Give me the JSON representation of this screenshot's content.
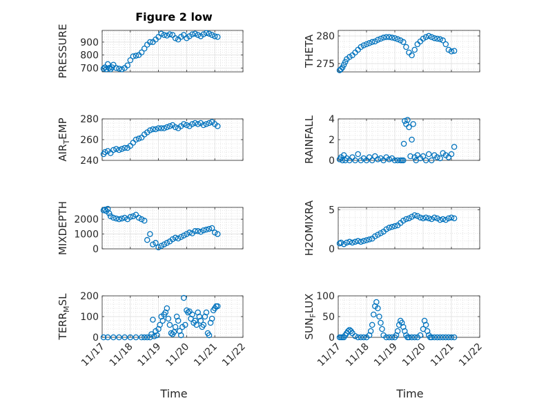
{
  "figure": {
    "title": "Figure 2 low",
    "xlabel": "Time",
    "xtick_labels": [
      "11/17",
      "11/18",
      "11/19",
      "11/20",
      "11/21",
      "11/22"
    ],
    "marker_color": "#0072bd"
  },
  "chart_data": [
    {
      "type": "scatter",
      "ylabel": "PRESSURE",
      "ylim": [
        670,
        990
      ],
      "yticks": [
        700,
        800,
        900
      ],
      "xlim": [
        17,
        22
      ],
      "grid": true,
      "marker": "open-circle",
      "x": [
        17.05,
        17.1,
        17.15,
        17.2,
        17.25,
        17.3,
        17.35,
        17.4,
        17.5,
        17.6,
        17.7,
        17.8,
        17.9,
        18.0,
        18.1,
        18.2,
        18.3,
        18.4,
        18.5,
        18.6,
        18.7,
        18.8,
        18.9,
        19.0,
        19.1,
        19.2,
        19.3,
        19.4,
        19.5,
        19.6,
        19.7,
        19.8,
        19.9,
        20.0,
        20.1,
        20.2,
        20.3,
        20.4,
        20.5,
        20.6,
        20.7,
        20.8,
        20.9,
        21.0,
        21.1
      ],
      "y": [
        695,
        705,
        690,
        730,
        700,
        690,
        705,
        725,
        700,
        695,
        690,
        700,
        720,
        760,
        790,
        795,
        800,
        820,
        850,
        880,
        900,
        900,
        920,
        940,
        965,
        955,
        950,
        960,
        955,
        930,
        920,
        940,
        955,
        930,
        945,
        960,
        965,
        955,
        945,
        960,
        970,
        965,
        955,
        945,
        940
      ]
    },
    {
      "type": "scatter",
      "ylabel": "THETA",
      "ylim": [
        273.5,
        281
      ],
      "yticks": [
        275,
        280
      ],
      "xlim": [
        17,
        22
      ],
      "grid": true,
      "marker": "open-circle",
      "x": [
        17.05,
        17.1,
        17.15,
        17.2,
        17.25,
        17.3,
        17.4,
        17.5,
        17.6,
        17.7,
        17.8,
        17.9,
        18.0,
        18.1,
        18.2,
        18.3,
        18.4,
        18.5,
        18.6,
        18.7,
        18.8,
        18.9,
        19.0,
        19.1,
        19.2,
        19.3,
        19.4,
        19.5,
        19.6,
        19.7,
        19.8,
        19.9,
        20.0,
        20.1,
        20.2,
        20.3,
        20.4,
        20.5,
        20.6,
        20.7,
        20.8,
        20.9,
        21.0,
        21.1
      ],
      "y": [
        273.8,
        274.0,
        274.3,
        274.8,
        275.3,
        275.8,
        276.2,
        276.5,
        277.0,
        277.5,
        278.0,
        278.3,
        278.5,
        278.7,
        278.9,
        279.0,
        279.3,
        279.5,
        279.7,
        279.8,
        279.8,
        279.7,
        279.6,
        279.4,
        279.2,
        278.9,
        278.0,
        277.0,
        276.5,
        277.5,
        278.5,
        279.0,
        279.5,
        279.8,
        280.0,
        279.8,
        279.6,
        279.5,
        279.4,
        279.2,
        278.5,
        277.5,
        277.2,
        277.3
      ]
    },
    {
      "type": "scatter",
      "ylabel": "AIR_TEMP",
      "ylim": [
        240,
        280
      ],
      "yticks": [
        240,
        260,
        280
      ],
      "xlim": [
        17,
        22
      ],
      "grid": true,
      "marker": "open-circle",
      "x": [
        17.05,
        17.1,
        17.2,
        17.3,
        17.4,
        17.5,
        17.6,
        17.7,
        17.8,
        17.9,
        18.0,
        18.1,
        18.2,
        18.3,
        18.4,
        18.5,
        18.6,
        18.7,
        18.8,
        18.9,
        19.0,
        19.1,
        19.2,
        19.3,
        19.4,
        19.5,
        19.6,
        19.7,
        19.8,
        19.9,
        20.0,
        20.1,
        20.2,
        20.3,
        20.4,
        20.5,
        20.6,
        20.7,
        20.8,
        20.9,
        21.0,
        21.1
      ],
      "y": [
        246,
        248,
        249,
        247,
        250,
        251,
        250,
        251,
        252,
        252,
        254,
        257,
        260,
        261,
        262,
        265,
        267,
        269,
        270,
        270,
        271,
        271,
        271,
        272,
        273,
        274,
        272,
        271,
        273,
        275,
        274,
        273,
        275,
        276,
        275,
        276,
        274,
        275,
        276,
        277,
        275,
        273
      ]
    },
    {
      "type": "scatter",
      "ylabel": "RAINFALL",
      "ylim": [
        0,
        4
      ],
      "yticks": [
        0,
        2,
        4
      ],
      "xlim": [
        17,
        22
      ],
      "grid": true,
      "marker": "open-circle",
      "x": [
        17.05,
        17.1,
        17.15,
        17.2,
        17.25,
        17.3,
        17.4,
        17.5,
        17.6,
        17.7,
        17.8,
        17.9,
        18.0,
        18.1,
        18.2,
        18.3,
        18.4,
        18.5,
        18.6,
        18.7,
        18.8,
        18.9,
        19.0,
        19.1,
        19.2,
        19.25,
        19.3,
        19.32,
        19.35,
        19.4,
        19.45,
        19.5,
        19.55,
        19.6,
        19.65,
        19.7,
        19.75,
        19.8,
        19.9,
        20.0,
        20.1,
        20.2,
        20.3,
        20.4,
        20.5,
        20.6,
        20.7,
        20.8,
        20.9,
        21.0,
        21.1
      ],
      "y": [
        0.1,
        0.3,
        0,
        0.5,
        0,
        0.2,
        0,
        0.3,
        0,
        0.6,
        0,
        0.2,
        0,
        0.3,
        0,
        0.4,
        0.1,
        0.2,
        0,
        0.3,
        0.1,
        0.2,
        0,
        0,
        0,
        0,
        0,
        1.6,
        3.8,
        3.5,
        3.9,
        3.2,
        0.4,
        2.0,
        3.5,
        0.3,
        0,
        0.5,
        0.2,
        0.4,
        0,
        0.6,
        0,
        0.5,
        0.3,
        0.2,
        0.7,
        0.5,
        0.3,
        0.6,
        1.3
      ]
    },
    {
      "type": "scatter",
      "ylabel": "MIXDEPTH",
      "ylim": [
        0,
        2800
      ],
      "yticks": [
        0,
        1000,
        2000
      ],
      "xlim": [
        17,
        22
      ],
      "grid": true,
      "marker": "open-circle",
      "x": [
        17.05,
        17.1,
        17.15,
        17.2,
        17.25,
        17.3,
        17.4,
        17.5,
        17.6,
        17.7,
        17.8,
        17.9,
        18.0,
        18.1,
        18.2,
        18.3,
        18.4,
        18.5,
        18.6,
        18.7,
        18.8,
        18.9,
        19.0,
        19.1,
        19.2,
        19.3,
        19.4,
        19.5,
        19.6,
        19.7,
        19.8,
        19.9,
        20.0,
        20.1,
        20.2,
        20.3,
        20.4,
        20.5,
        20.6,
        20.7,
        20.8,
        20.9,
        21.0,
        21.1
      ],
      "y": [
        2600,
        2650,
        2550,
        2700,
        2400,
        2200,
        2100,
        2050,
        2000,
        2050,
        2100,
        2000,
        2150,
        2200,
        2300,
        2100,
        2000,
        1900,
        600,
        1000,
        300,
        400,
        100,
        200,
        300,
        400,
        500,
        650,
        750,
        700,
        800,
        900,
        1000,
        1100,
        1050,
        1200,
        1200,
        1150,
        1250,
        1300,
        1350,
        1400,
        1100,
        1000
      ]
    },
    {
      "type": "scatter",
      "ylabel": "H2OMIXRA",
      "ylim": [
        0,
        5.3
      ],
      "yticks": [
        0,
        5
      ],
      "xlim": [
        17,
        22
      ],
      "grid": true,
      "marker": "open-circle",
      "x": [
        17.05,
        17.1,
        17.2,
        17.3,
        17.4,
        17.5,
        17.6,
        17.7,
        17.8,
        17.9,
        18.0,
        18.1,
        18.2,
        18.3,
        18.4,
        18.5,
        18.6,
        18.7,
        18.8,
        18.9,
        19.0,
        19.1,
        19.2,
        19.3,
        19.4,
        19.5,
        19.6,
        19.7,
        19.8,
        19.9,
        20.0,
        20.1,
        20.2,
        20.3,
        20.4,
        20.5,
        20.6,
        20.7,
        20.8,
        20.9,
        21.0,
        21.1
      ],
      "y": [
        0.7,
        0.8,
        0.6,
        0.8,
        0.9,
        0.8,
        0.9,
        1.0,
        0.9,
        1.0,
        1.1,
        1.2,
        1.3,
        1.6,
        1.8,
        2.0,
        2.2,
        2.5,
        2.7,
        2.8,
        2.9,
        3.0,
        3.3,
        3.6,
        3.8,
        3.9,
        4.1,
        4.3,
        4.2,
        4.0,
        3.9,
        4.0,
        3.9,
        3.8,
        4.0,
        3.9,
        3.7,
        3.8,
        3.7,
        3.9,
        4.0,
        3.9
      ]
    },
    {
      "type": "scatter",
      "ylabel": "TERR_MSL",
      "ylim": [
        0,
        200
      ],
      "yticks": [
        0,
        100,
        200
      ],
      "xlim": [
        17,
        22
      ],
      "grid": true,
      "marker": "open-circle",
      "x": [
        17.05,
        17.2,
        17.4,
        17.6,
        17.8,
        18.0,
        18.2,
        18.4,
        18.5,
        18.6,
        18.7,
        18.75,
        18.8,
        18.85,
        18.9,
        18.95,
        19.0,
        19.05,
        19.1,
        19.15,
        19.2,
        19.25,
        19.3,
        19.35,
        19.4,
        19.45,
        19.5,
        19.55,
        19.6,
        19.65,
        19.7,
        19.75,
        19.8,
        19.85,
        19.9,
        19.95,
        20.0,
        20.05,
        20.1,
        20.15,
        20.2,
        20.25,
        20.3,
        20.35,
        20.4,
        20.45,
        20.5,
        20.55,
        20.6,
        20.65,
        20.7,
        20.75,
        20.8,
        20.85,
        20.9,
        20.95,
        21.0,
        21.05,
        21.1
      ],
      "y": [
        0,
        0,
        0,
        0,
        0,
        0,
        0,
        0,
        0,
        0,
        0,
        15,
        85,
        5,
        30,
        10,
        40,
        60,
        100,
        80,
        110,
        120,
        140,
        90,
        60,
        20,
        15,
        25,
        50,
        100,
        80,
        30,
        10,
        50,
        190,
        60,
        130,
        120,
        125,
        90,
        110,
        70,
        80,
        60,
        120,
        100,
        80,
        50,
        60,
        100,
        120,
        20,
        10,
        70,
        90,
        130,
        140,
        150,
        150
      ]
    },
    {
      "type": "scatter",
      "ylabel": "SUN_FLUX",
      "ylim": [
        0,
        100
      ],
      "yticks": [
        0,
        50,
        100
      ],
      "xlim": [
        17,
        22
      ],
      "grid": true,
      "marker": "open-circle",
      "x": [
        17.05,
        17.1,
        17.15,
        17.2,
        17.25,
        17.3,
        17.35,
        17.4,
        17.45,
        17.5,
        17.6,
        17.7,
        17.8,
        17.9,
        18.0,
        18.1,
        18.15,
        18.2,
        18.25,
        18.3,
        18.35,
        18.4,
        18.45,
        18.5,
        18.55,
        18.6,
        18.7,
        18.8,
        18.9,
        19.0,
        19.05,
        19.1,
        19.15,
        19.2,
        19.25,
        19.3,
        19.35,
        19.4,
        19.45,
        19.5,
        19.6,
        19.7,
        19.8,
        19.9,
        20.0,
        20.05,
        20.1,
        20.15,
        20.2,
        20.25,
        20.3,
        20.4,
        20.5,
        20.6,
        20.7,
        20.8,
        20.9,
        21.0,
        21.1
      ],
      "y": [
        0,
        0,
        0,
        0,
        5,
        10,
        15,
        18,
        15,
        10,
        3,
        0,
        0,
        0,
        0,
        5,
        15,
        30,
        55,
        75,
        85,
        70,
        50,
        35,
        20,
        5,
        0,
        0,
        0,
        0,
        5,
        15,
        30,
        40,
        35,
        25,
        15,
        5,
        0,
        0,
        0,
        0,
        0,
        5,
        20,
        40,
        30,
        15,
        5,
        0,
        0,
        0,
        0,
        0,
        0,
        0,
        0,
        0,
        0
      ]
    }
  ]
}
